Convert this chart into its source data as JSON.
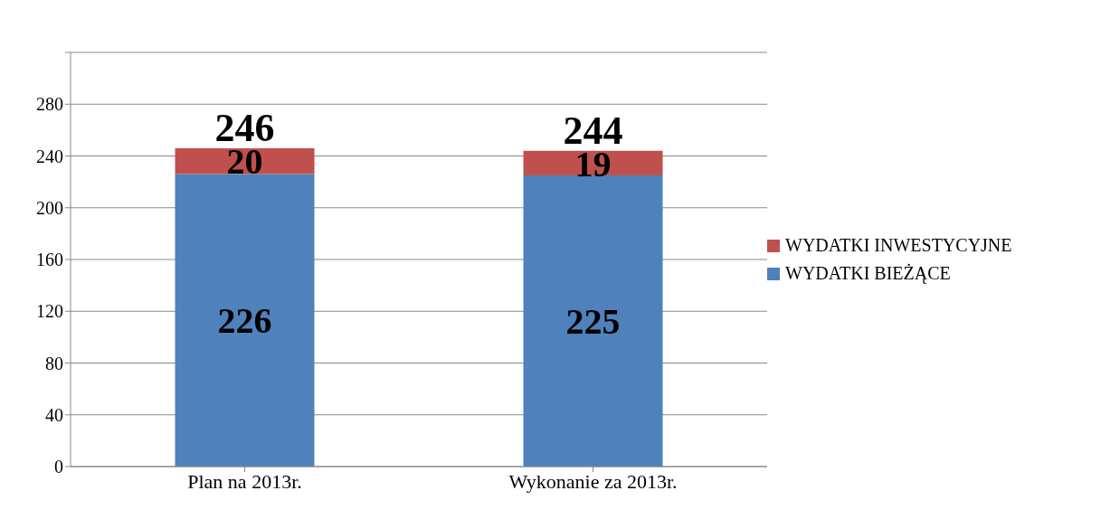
{
  "chart_data": {
    "type": "bar",
    "stacked": true,
    "categories": [
      "Plan na 2013r.",
      "Wykonanie za 2013r."
    ],
    "series": [
      {
        "name": "WYDATKI BIEŻĄCE",
        "color": "#4f81bd",
        "values": [
          226,
          225
        ]
      },
      {
        "name": "WYDATKI INWESTYCYJNE",
        "color": "#c0504d",
        "values": [
          20,
          19
        ]
      }
    ],
    "ylim": [
      0,
      320
    ],
    "yticks": [
      0,
      40,
      80,
      120,
      160,
      200,
      240,
      280,
      {
        "value": 320,
        "label": null
      }
    ],
    "grid": "y",
    "legend": "right",
    "data_labels": true,
    "totals": [
      "246",
      "244"
    ]
  }
}
